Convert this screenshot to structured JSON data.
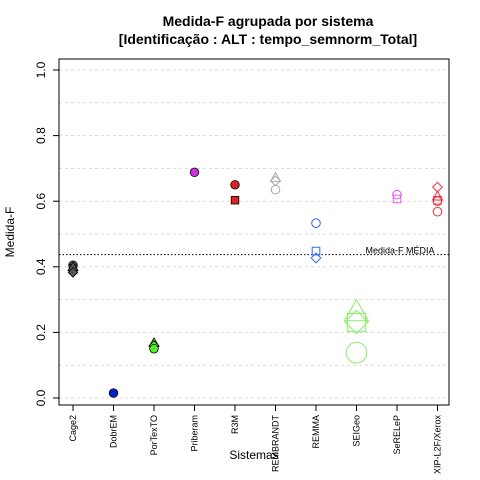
{
  "chart_data": {
    "type": "scatter",
    "title": "Medida-F agrupada por sistema",
    "subtitle": "[Identificação : ALT : tempo_semnorm_Total]",
    "xlabel": "Sistemas",
    "ylabel": "Medida-F",
    "ylim": [
      0,
      1
    ],
    "yticks": [
      "0.0",
      "0.2",
      "0.4",
      "0.6",
      "0.8",
      "1.0"
    ],
    "grid": true,
    "categories": [
      "Cage2",
      "DobrEM",
      "PorTexTO",
      "Priberam",
      "R3M",
      "REMBRANDT",
      "REMMA",
      "SEIGeo",
      "SeRELeP",
      "XIP-L2F/Xerox"
    ],
    "reference_line": {
      "value": 0.437,
      "label": "Medida-F MÉDIA"
    },
    "points": [
      {
        "category": "Cage2",
        "value": 0.405,
        "shape": "circle",
        "filled": true,
        "color": "#555555",
        "size": 1
      },
      {
        "category": "Cage2",
        "value": 0.395,
        "shape": "square",
        "filled": true,
        "color": "#555555",
        "size": 1
      },
      {
        "category": "Cage2",
        "value": 0.4,
        "shape": "triangle",
        "filled": true,
        "color": "#555555",
        "size": 1
      },
      {
        "category": "Cage2",
        "value": 0.383,
        "shape": "diamond",
        "filled": true,
        "color": "#555555",
        "size": 1
      },
      {
        "category": "DobrEM",
        "value": 0.015,
        "shape": "circle",
        "filled": true,
        "color": "#0022cc",
        "size": 1
      },
      {
        "category": "PorTexTO",
        "value": 0.168,
        "shape": "triangle",
        "filled": true,
        "color": "#55ee22",
        "size": 1
      },
      {
        "category": "PorTexTO",
        "value": 0.16,
        "shape": "diamond",
        "filled": true,
        "color": "#55ee22",
        "size": 1
      },
      {
        "category": "PorTexTO",
        "value": 0.15,
        "shape": "circle",
        "filled": true,
        "color": "#55ee22",
        "size": 1
      },
      {
        "category": "Priberam",
        "value": 0.688,
        "shape": "circle",
        "filled": true,
        "color": "#cc33dd",
        "size": 1
      },
      {
        "category": "R3M",
        "value": 0.65,
        "shape": "circle",
        "filled": true,
        "color": "#dd2222",
        "size": 1
      },
      {
        "category": "R3M",
        "value": 0.603,
        "shape": "square",
        "filled": true,
        "color": "#dd2222",
        "size": 1
      },
      {
        "category": "REMBRANDT",
        "value": 0.672,
        "shape": "triangle",
        "filled": false,
        "color": "#aaaaaa",
        "size": 1
      },
      {
        "category": "REMBRANDT",
        "value": 0.662,
        "shape": "diamond",
        "filled": false,
        "color": "#aaaaaa",
        "size": 1
      },
      {
        "category": "REMBRANDT",
        "value": 0.635,
        "shape": "circle",
        "filled": false,
        "color": "#aaaaaa",
        "size": 1
      },
      {
        "category": "REMMA",
        "value": 0.533,
        "shape": "circle",
        "filled": false,
        "color": "#3366ee",
        "size": 1
      },
      {
        "category": "REMMA",
        "value": 0.448,
        "shape": "square",
        "filled": false,
        "color": "#3366ee",
        "size": 1
      },
      {
        "category": "REMMA",
        "value": 0.427,
        "shape": "diamond",
        "filled": false,
        "color": "#3366ee",
        "size": 1
      },
      {
        "category": "SEIGeo",
        "value": 0.263,
        "shape": "triangle",
        "filled": false,
        "color": "#88ee66",
        "size": 2.4
      },
      {
        "category": "SEIGeo",
        "value": 0.232,
        "shape": "diamond",
        "filled": false,
        "color": "#88ee66",
        "size": 2.4
      },
      {
        "category": "SEIGeo",
        "value": 0.23,
        "shape": "square",
        "filled": false,
        "color": "#88ee66",
        "size": 2.4
      },
      {
        "category": "SEIGeo",
        "value": 0.138,
        "shape": "circle",
        "filled": false,
        "color": "#88ee66",
        "size": 2.4
      },
      {
        "category": "SeRELeP",
        "value": 0.62,
        "shape": "circle",
        "filled": false,
        "color": "#dd55ee",
        "size": 1
      },
      {
        "category": "SeRELeP",
        "value": 0.607,
        "shape": "square",
        "filled": false,
        "color": "#dd55ee",
        "size": 1
      },
      {
        "category": "XIP-L2F/Xerox",
        "value": 0.643,
        "shape": "diamond",
        "filled": false,
        "color": "#ee3344",
        "size": 1
      },
      {
        "category": "XIP-L2F/Xerox",
        "value": 0.615,
        "shape": "triangle",
        "filled": false,
        "color": "#ee3344",
        "size": 1
      },
      {
        "category": "XIP-L2F/Xerox",
        "value": 0.603,
        "shape": "square",
        "filled": false,
        "color": "#ee3344",
        "size": 1
      },
      {
        "category": "XIP-L2F/Xerox",
        "value": 0.6,
        "shape": "circle",
        "filled": false,
        "color": "#ee3344",
        "size": 1
      },
      {
        "category": "XIP-L2F/Xerox",
        "value": 0.568,
        "shape": "circle",
        "filled": false,
        "color": "#ee3344",
        "size": 1
      }
    ]
  }
}
